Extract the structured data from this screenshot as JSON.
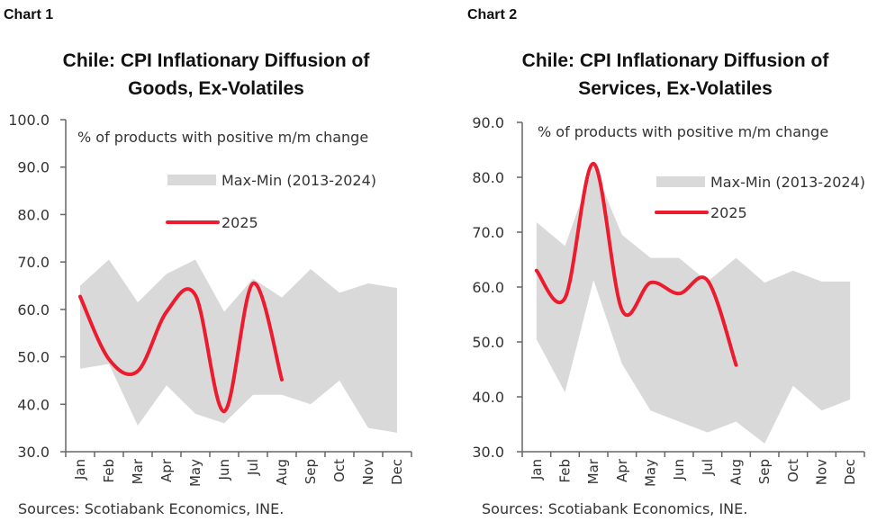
{
  "colors": {
    "band": "#d9d9d9",
    "line": "#ec1c2e",
    "axis": "#666666",
    "text": "#333333"
  },
  "charts": [
    {
      "label": "Chart 1",
      "title_line1": "Chile: CPI Inflationary Diffusion of",
      "title_line2": "Goods, Ex-Volatiles",
      "note": "% of products with positive m/m change",
      "legend_band": "Max-Min (2013-2024)",
      "legend_line": "2025",
      "source": "Sources: Scotiabank Economics, INE.",
      "y_ticks": [
        "100.0",
        "90.0",
        "80.0",
        "70.0",
        "60.0",
        "50.0",
        "40.0",
        "30.0"
      ],
      "months": [
        "Jan",
        "Feb",
        "Mar",
        "Apr",
        "May",
        "Jun",
        "Jul",
        "Aug",
        "Sep",
        "Oct",
        "Nov",
        "Dec"
      ]
    },
    {
      "label": "Chart 2",
      "title_line1": "Chile: CPI Inflationary Diffusion of",
      "title_line2": "Services, Ex-Volatiles",
      "note": "% of products with positive m/m change",
      "legend_band": "Max-Min (2013-2024)",
      "legend_line": "2025",
      "source": "Sources: Scotiabank Economics, INE.",
      "y_ticks": [
        "90.0",
        "80.0",
        "70.0",
        "60.0",
        "50.0",
        "40.0",
        "30.0"
      ],
      "months": [
        "Jan",
        "Feb",
        "Mar",
        "Apr",
        "May",
        "Jun",
        "Jul",
        "Aug",
        "Sep",
        "Oct",
        "Nov",
        "Dec"
      ]
    }
  ],
  "chart_data": [
    {
      "type": "area",
      "title": "Chile: CPI Inflationary Diffusion of Goods, Ex-Volatiles",
      "ylabel": "% of products with positive m/m change",
      "xlabel": "",
      "ylim": [
        30,
        100
      ],
      "categories": [
        "Jan",
        "Feb",
        "Mar",
        "Apr",
        "May",
        "Jun",
        "Jul",
        "Aug",
        "Sep",
        "Oct",
        "Nov",
        "Dec"
      ],
      "series": [
        {
          "name": "Max (2013-2024)",
          "values": [
            65.0,
            70.5,
            61.5,
            67.5,
            70.5,
            59.5,
            66.5,
            62.5,
            68.5,
            63.5,
            65.5,
            64.5
          ]
        },
        {
          "name": "Min (2013-2024)",
          "values": [
            47.5,
            48.5,
            35.5,
            44.0,
            38.0,
            36.0,
            42.0,
            42.0,
            40.0,
            45.0,
            35.0,
            34.0
          ]
        },
        {
          "name": "2025",
          "values": [
            62.7,
            49.5,
            47.0,
            59.5,
            63.0,
            38.5,
            65.5,
            45.2,
            null,
            null,
            null,
            null
          ]
        }
      ],
      "legend": [
        "Max-Min (2013-2024)",
        "2025"
      ],
      "legend_position": "upper right inside",
      "grid": false
    },
    {
      "type": "area",
      "title": "Chile: CPI Inflationary Diffusion of Services, Ex-Volatiles",
      "ylabel": "% of products with positive m/m change",
      "xlabel": "",
      "ylim": [
        30,
        90
      ],
      "categories": [
        "Jan",
        "Feb",
        "Mar",
        "Apr",
        "May",
        "Jun",
        "Jul",
        "Aug",
        "Sep",
        "Oct",
        "Nov",
        "Dec"
      ],
      "series": [
        {
          "name": "Max (2013-2024)",
          "values": [
            71.8,
            67.5,
            82.0,
            69.5,
            65.3,
            65.3,
            61.0,
            65.3,
            60.8,
            63.0,
            61.0,
            61.0
          ]
        },
        {
          "name": "Min (2013-2024)",
          "values": [
            50.5,
            40.8,
            61.3,
            46.0,
            37.5,
            35.5,
            33.5,
            35.5,
            31.5,
            42.0,
            37.5,
            39.5
          ]
        },
        {
          "name": "2025",
          "values": [
            63.0,
            58.0,
            82.5,
            55.8,
            60.8,
            58.8,
            61.2,
            45.8,
            null,
            null,
            null,
            null
          ]
        }
      ],
      "legend": [
        "Max-Min (2013-2024)",
        "2025"
      ],
      "legend_position": "upper right inside",
      "grid": false
    }
  ]
}
